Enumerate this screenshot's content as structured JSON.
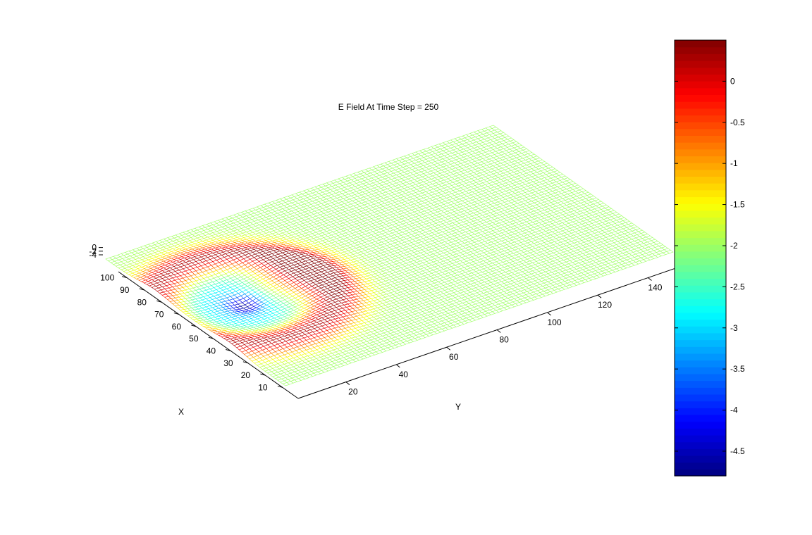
{
  "chart_data": {
    "type": "surface",
    "title": "E Field At Time Step = 250",
    "xlabel": "X",
    "ylabel": "Y",
    "zlabel": "",
    "x_ticks": [
      10,
      20,
      30,
      40,
      50,
      60,
      70,
      80,
      90,
      100
    ],
    "y_ticks": [
      20,
      40,
      60,
      80,
      100,
      120,
      140
    ],
    "z_ticks": [
      0,
      -2,
      -4
    ],
    "xlim": [
      1,
      105
    ],
    "ylim": [
      1,
      155
    ],
    "zlim": [
      -4.8,
      0.5
    ],
    "colorbar": {
      "colormap": "jet",
      "range": [
        -4.8,
        0.5
      ],
      "ticks": [
        0,
        -0.5,
        -1,
        -1.5,
        -2,
        -2.5,
        -3,
        -3.5,
        -4,
        -4.5
      ]
    },
    "surface_features": {
      "background_value": -2.0,
      "source_point": {
        "x": 55,
        "y": 22,
        "z_min": -4.8
      },
      "inner_trough": {
        "radius": 20,
        "value": -3.0
      },
      "outer_ring": {
        "radius": 40,
        "value": 0.3
      },
      "secondary_lobe": {
        "center_x": 58,
        "center_y": 42,
        "value": 0.4
      }
    }
  }
}
